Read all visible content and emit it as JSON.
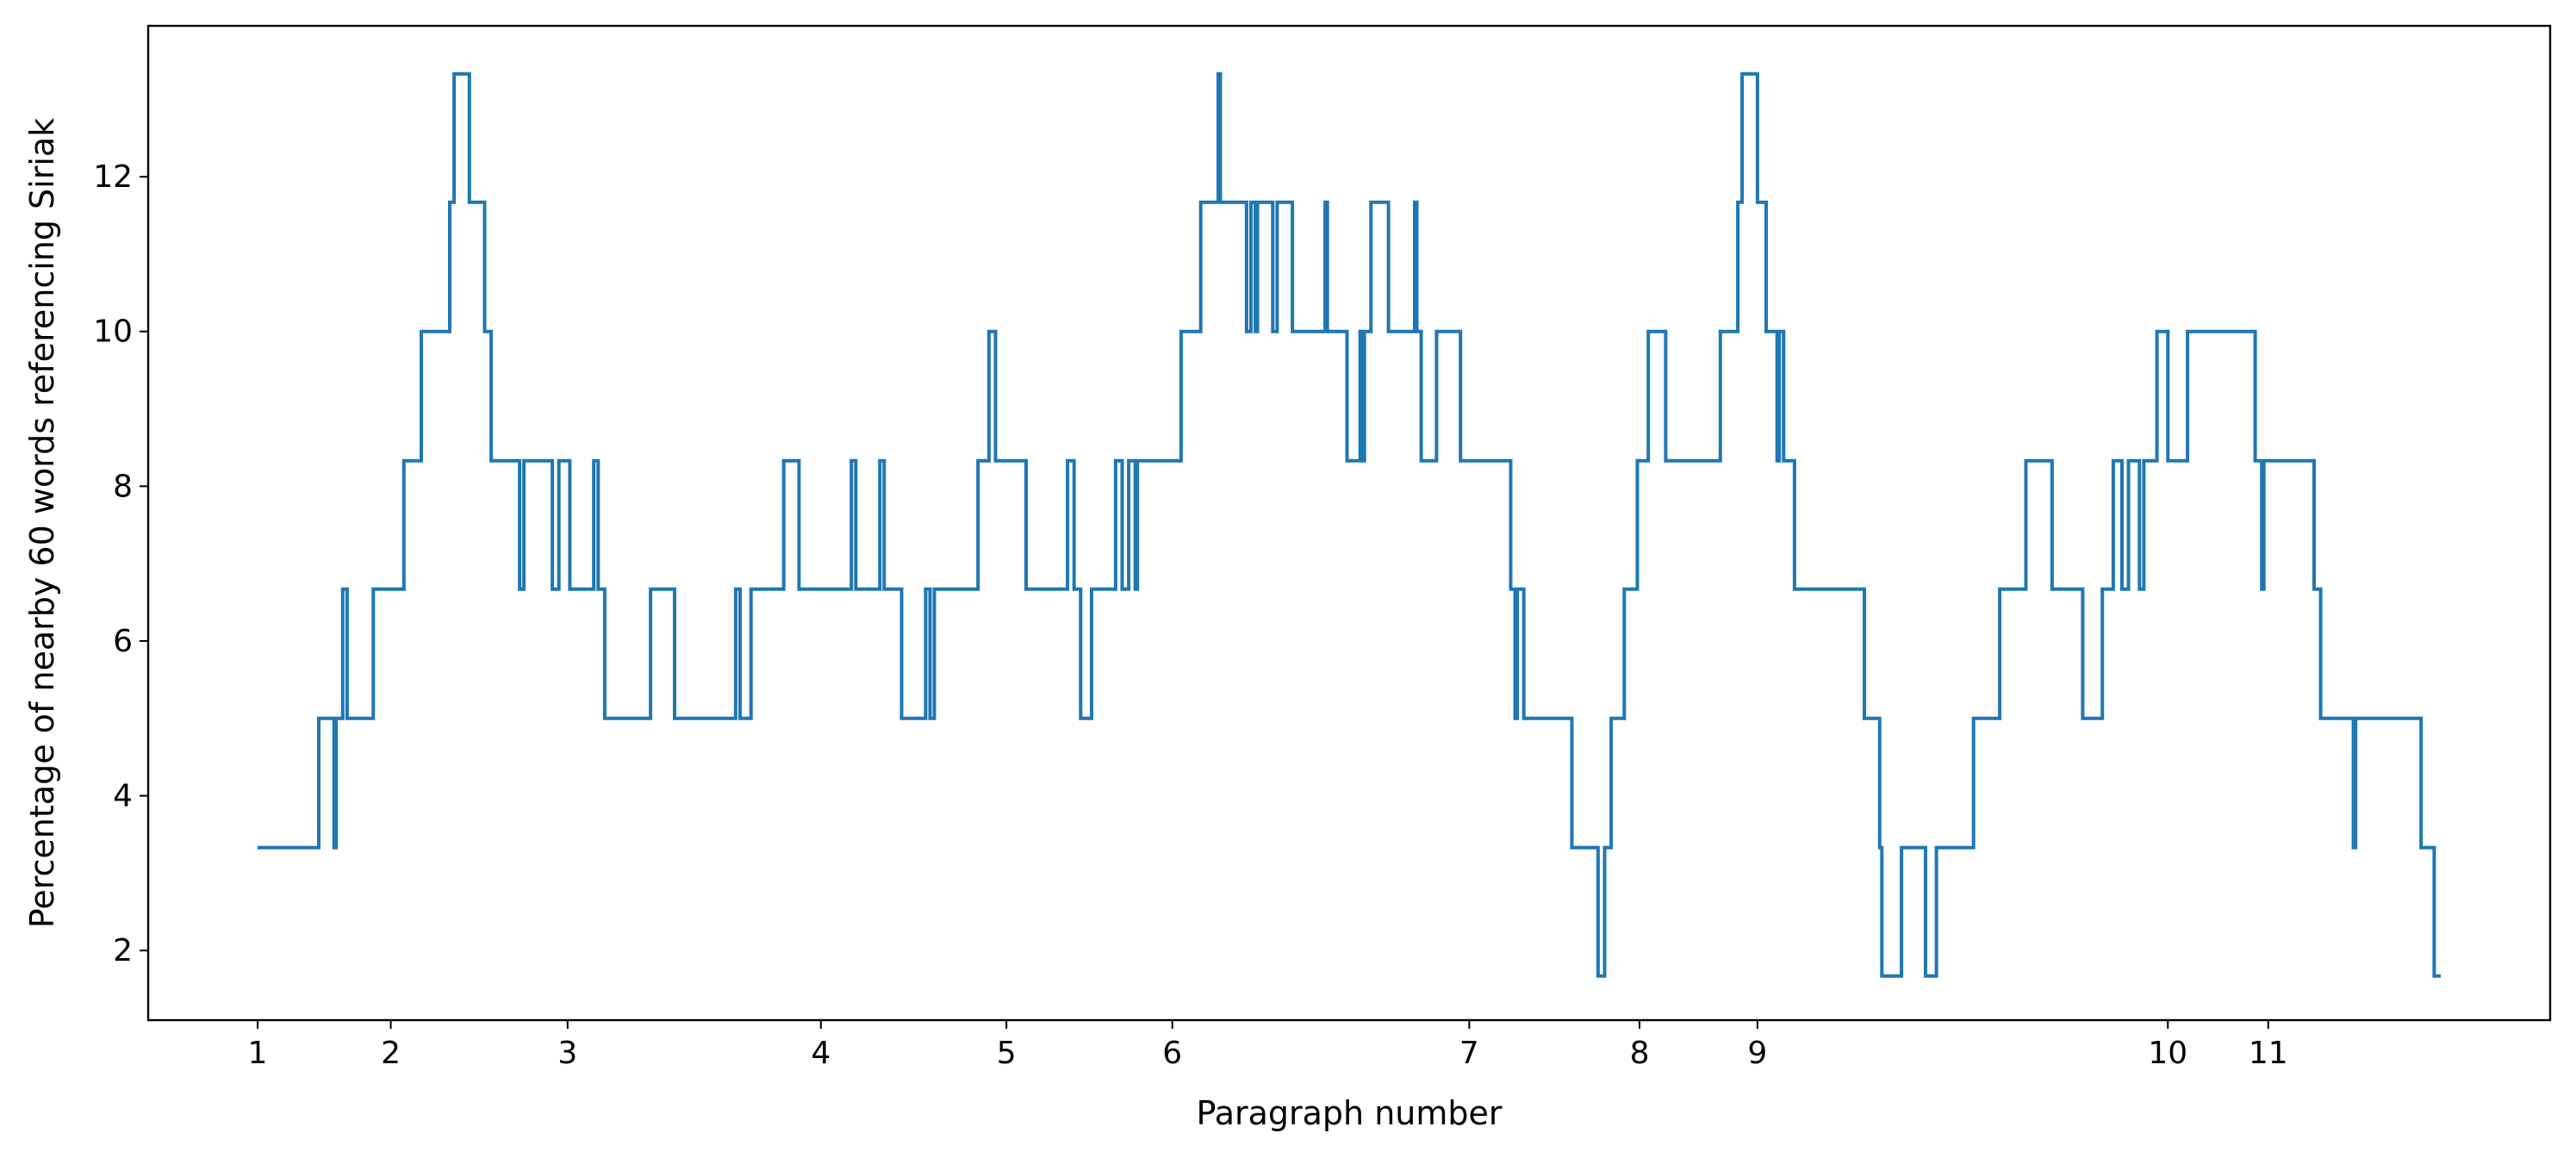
{
  "chart_data": {
    "type": "line",
    "title": "",
    "xlabel": "Paragraph number",
    "ylabel": "Percentage of nearby 60 words referencing Siriak",
    "xlim": [
      0,
      1
    ],
    "ylim": [
      1.1,
      13.95
    ],
    "y_ticks": [
      2,
      4,
      6,
      8,
      10,
      12
    ],
    "x_ticks": [
      {
        "label": "1",
        "pos": 0.0
      },
      {
        "label": "2",
        "pos": 0.061
      },
      {
        "label": "3",
        "pos": 0.142
      },
      {
        "label": "4",
        "pos": 0.258
      },
      {
        "label": "5",
        "pos": 0.343
      },
      {
        "label": "6",
        "pos": 0.419
      },
      {
        "label": "7",
        "pos": 0.555
      },
      {
        "label": "8",
        "pos": 0.633
      },
      {
        "label": "9",
        "pos": 0.687
      },
      {
        "label": "10",
        "pos": 0.875
      },
      {
        "label": "11",
        "pos": 0.921
      }
    ],
    "grid": false,
    "legend": "none",
    "color": "#1f77b4",
    "series": [
      {
        "points": [
          [
            0.0,
            3.33
          ],
          [
            0.028,
            3.33
          ],
          [
            0.028,
            5.0
          ],
          [
            0.035,
            5.0
          ],
          [
            0.035,
            3.33
          ],
          [
            0.036,
            3.33
          ],
          [
            0.036,
            5.0
          ],
          [
            0.039,
            5.0
          ],
          [
            0.039,
            6.67
          ],
          [
            0.041,
            6.67
          ],
          [
            0.041,
            5.0
          ],
          [
            0.053,
            5.0
          ],
          [
            0.053,
            6.67
          ],
          [
            0.067,
            6.67
          ],
          [
            0.067,
            8.33
          ],
          [
            0.075,
            8.33
          ],
          [
            0.075,
            10.0
          ],
          [
            0.088,
            10.0
          ],
          [
            0.088,
            11.67
          ],
          [
            0.09,
            11.67
          ],
          [
            0.09,
            13.33
          ],
          [
            0.097,
            13.33
          ],
          [
            0.097,
            11.67
          ],
          [
            0.104,
            11.67
          ],
          [
            0.104,
            10.0
          ],
          [
            0.107,
            10.0
          ],
          [
            0.107,
            8.33
          ],
          [
            0.12,
            8.33
          ],
          [
            0.12,
            6.67
          ],
          [
            0.122,
            6.67
          ],
          [
            0.122,
            8.33
          ],
          [
            0.135,
            8.33
          ],
          [
            0.135,
            6.67
          ],
          [
            0.138,
            6.67
          ],
          [
            0.138,
            8.33
          ],
          [
            0.143,
            8.33
          ],
          [
            0.143,
            6.67
          ],
          [
            0.154,
            6.67
          ],
          [
            0.154,
            8.33
          ],
          [
            0.156,
            8.33
          ],
          [
            0.156,
            6.67
          ],
          [
            0.159,
            6.67
          ],
          [
            0.159,
            5.0
          ],
          [
            0.18,
            5.0
          ],
          [
            0.18,
            6.67
          ],
          [
            0.191,
            6.67
          ],
          [
            0.191,
            5.0
          ],
          [
            0.219,
            5.0
          ],
          [
            0.219,
            6.67
          ],
          [
            0.221,
            6.67
          ],
          [
            0.221,
            5.0
          ],
          [
            0.226,
            5.0
          ],
          [
            0.226,
            6.67
          ],
          [
            0.241,
            6.67
          ],
          [
            0.241,
            8.33
          ],
          [
            0.248,
            8.33
          ],
          [
            0.248,
            6.67
          ],
          [
            0.272,
            6.67
          ],
          [
            0.272,
            8.33
          ],
          [
            0.274,
            8.33
          ],
          [
            0.274,
            6.67
          ],
          [
            0.285,
            6.67
          ],
          [
            0.285,
            8.33
          ],
          [
            0.287,
            8.33
          ],
          [
            0.287,
            6.67
          ],
          [
            0.295,
            6.67
          ],
          [
            0.295,
            5.0
          ],
          [
            0.306,
            5.0
          ],
          [
            0.306,
            6.67
          ],
          [
            0.308,
            6.67
          ],
          [
            0.308,
            5.0
          ],
          [
            0.31,
            5.0
          ],
          [
            0.31,
            6.67
          ],
          [
            0.33,
            6.67
          ],
          [
            0.33,
            8.33
          ],
          [
            0.335,
            8.33
          ],
          [
            0.335,
            10.0
          ],
          [
            0.338,
            10.0
          ],
          [
            0.338,
            8.33
          ],
          [
            0.352,
            8.33
          ],
          [
            0.352,
            6.67
          ],
          [
            0.371,
            6.67
          ],
          [
            0.371,
            8.33
          ],
          [
            0.374,
            8.33
          ],
          [
            0.374,
            6.67
          ],
          [
            0.377,
            6.67
          ],
          [
            0.377,
            5.0
          ],
          [
            0.382,
            5.0
          ],
          [
            0.382,
            6.67
          ],
          [
            0.393,
            6.67
          ],
          [
            0.393,
            8.33
          ],
          [
            0.396,
            8.33
          ],
          [
            0.396,
            6.67
          ],
          [
            0.399,
            6.67
          ],
          [
            0.399,
            8.33
          ],
          [
            0.402,
            8.33
          ],
          [
            0.402,
            6.67
          ],
          [
            0.403,
            6.67
          ],
          [
            0.403,
            8.33
          ],
          [
            0.423,
            8.33
          ],
          [
            0.423,
            10.0
          ],
          [
            0.432,
            10.0
          ],
          [
            0.432,
            11.67
          ],
          [
            0.44,
            11.67
          ],
          [
            0.44,
            13.33
          ],
          [
            0.441,
            13.33
          ],
          [
            0.441,
            11.67
          ],
          [
            0.453,
            11.67
          ],
          [
            0.453,
            10.0
          ],
          [
            0.455,
            10.0
          ],
          [
            0.455,
            11.67
          ],
          [
            0.457,
            11.67
          ],
          [
            0.457,
            10.0
          ],
          [
            0.458,
            10.0
          ],
          [
            0.458,
            11.67
          ],
          [
            0.465,
            11.67
          ],
          [
            0.465,
            10.0
          ],
          [
            0.467,
            10.0
          ],
          [
            0.467,
            11.67
          ],
          [
            0.474,
            11.67
          ],
          [
            0.474,
            10.0
          ],
          [
            0.489,
            10.0
          ],
          [
            0.489,
            11.67
          ],
          [
            0.49,
            11.67
          ],
          [
            0.49,
            10.0
          ],
          [
            0.499,
            10.0
          ],
          [
            0.499,
            8.33
          ],
          [
            0.505,
            8.33
          ],
          [
            0.505,
            10.0
          ],
          [
            0.506,
            10.0
          ],
          [
            0.506,
            8.33
          ],
          [
            0.507,
            8.33
          ],
          [
            0.507,
            10.0
          ],
          [
            0.51,
            10.0
          ],
          [
            0.51,
            11.67
          ],
          [
            0.518,
            11.67
          ],
          [
            0.518,
            10.0
          ],
          [
            0.53,
            10.0
          ],
          [
            0.53,
            11.67
          ],
          [
            0.531,
            11.67
          ],
          [
            0.531,
            10.0
          ],
          [
            0.533,
            10.0
          ],
          [
            0.533,
            8.33
          ],
          [
            0.54,
            8.33
          ],
          [
            0.54,
            10.0
          ],
          [
            0.551,
            10.0
          ],
          [
            0.551,
            8.33
          ],
          [
            0.574,
            8.33
          ],
          [
            0.574,
            6.67
          ],
          [
            0.576,
            6.67
          ],
          [
            0.576,
            5.0
          ],
          [
            0.577,
            5.0
          ],
          [
            0.577,
            6.67
          ],
          [
            0.578,
            6.67
          ],
          [
            0.578,
            6.67
          ],
          [
            0.58,
            6.67
          ],
          [
            0.58,
            5.0
          ],
          [
            0.602,
            5.0
          ],
          [
            0.602,
            3.33
          ],
          [
            0.614,
            3.33
          ],
          [
            0.614,
            1.67
          ],
          [
            0.617,
            1.67
          ],
          [
            0.617,
            3.33
          ],
          [
            0.62,
            3.33
          ],
          [
            0.62,
            5.0
          ],
          [
            0.626,
            5.0
          ],
          [
            0.626,
            6.67
          ],
          [
            0.632,
            6.67
          ],
          [
            0.632,
            8.33
          ],
          [
            0.637,
            8.33
          ],
          [
            0.637,
            10.0
          ],
          [
            0.645,
            10.0
          ],
          [
            0.645,
            8.33
          ],
          [
            0.67,
            8.33
          ],
          [
            0.67,
            10.0
          ],
          [
            0.678,
            10.0
          ],
          [
            0.678,
            11.67
          ],
          [
            0.68,
            11.67
          ],
          [
            0.68,
            13.33
          ],
          [
            0.687,
            13.33
          ],
          [
            0.687,
            11.67
          ],
          [
            0.691,
            11.67
          ],
          [
            0.691,
            10.0
          ],
          [
            0.696,
            10.0
          ],
          [
            0.696,
            8.33
          ],
          [
            0.697,
            8.33
          ],
          [
            0.697,
            10.0
          ],
          [
            0.699,
            10.0
          ],
          [
            0.699,
            8.33
          ],
          [
            0.704,
            8.33
          ],
          [
            0.704,
            6.67
          ],
          [
            0.736,
            6.67
          ],
          [
            0.736,
            5.0
          ],
          [
            0.743,
            5.0
          ],
          [
            0.743,
            3.33
          ],
          [
            0.744,
            3.33
          ],
          [
            0.744,
            1.67
          ],
          [
            0.753,
            1.67
          ],
          [
            0.753,
            3.33
          ],
          [
            0.764,
            3.33
          ],
          [
            0.764,
            1.67
          ],
          [
            0.769,
            1.67
          ],
          [
            0.769,
            3.33
          ],
          [
            0.786,
            3.33
          ],
          [
            0.786,
            5.0
          ],
          [
            0.798,
            5.0
          ],
          [
            0.798,
            6.67
          ],
          [
            0.81,
            6.67
          ],
          [
            0.81,
            8.33
          ],
          [
            0.822,
            8.33
          ],
          [
            0.822,
            6.67
          ],
          [
            0.836,
            6.67
          ],
          [
            0.836,
            5.0
          ],
          [
            0.845,
            5.0
          ],
          [
            0.845,
            6.67
          ],
          [
            0.85,
            6.67
          ],
          [
            0.85,
            8.33
          ],
          [
            0.854,
            8.33
          ],
          [
            0.854,
            6.67
          ],
          [
            0.857,
            6.67
          ],
          [
            0.857,
            8.33
          ],
          [
            0.862,
            8.33
          ],
          [
            0.862,
            6.67
          ],
          [
            0.864,
            6.67
          ],
          [
            0.864,
            8.33
          ],
          [
            0.87,
            8.33
          ],
          [
            0.87,
            10.0
          ],
          [
            0.875,
            10.0
          ],
          [
            0.875,
            8.33
          ],
          [
            0.884,
            8.33
          ],
          [
            0.884,
            10.0
          ],
          [
            0.915,
            10.0
          ],
          [
            0.915,
            8.33
          ],
          [
            0.918,
            8.33
          ],
          [
            0.918,
            6.67
          ],
          [
            0.919,
            6.67
          ],
          [
            0.919,
            8.33
          ],
          [
            0.942,
            8.33
          ],
          [
            0.942,
            6.67
          ],
          [
            0.945,
            6.67
          ],
          [
            0.945,
            5.0
          ],
          [
            0.96,
            5.0
          ],
          [
            0.96,
            3.33
          ],
          [
            0.961,
            3.33
          ],
          [
            0.961,
            5.0
          ],
          [
            0.991,
            5.0
          ],
          [
            0.991,
            3.33
          ],
          [
            0.997,
            3.33
          ],
          [
            0.997,
            1.67
          ],
          [
            1.0,
            1.67
          ]
        ]
      }
    ]
  }
}
